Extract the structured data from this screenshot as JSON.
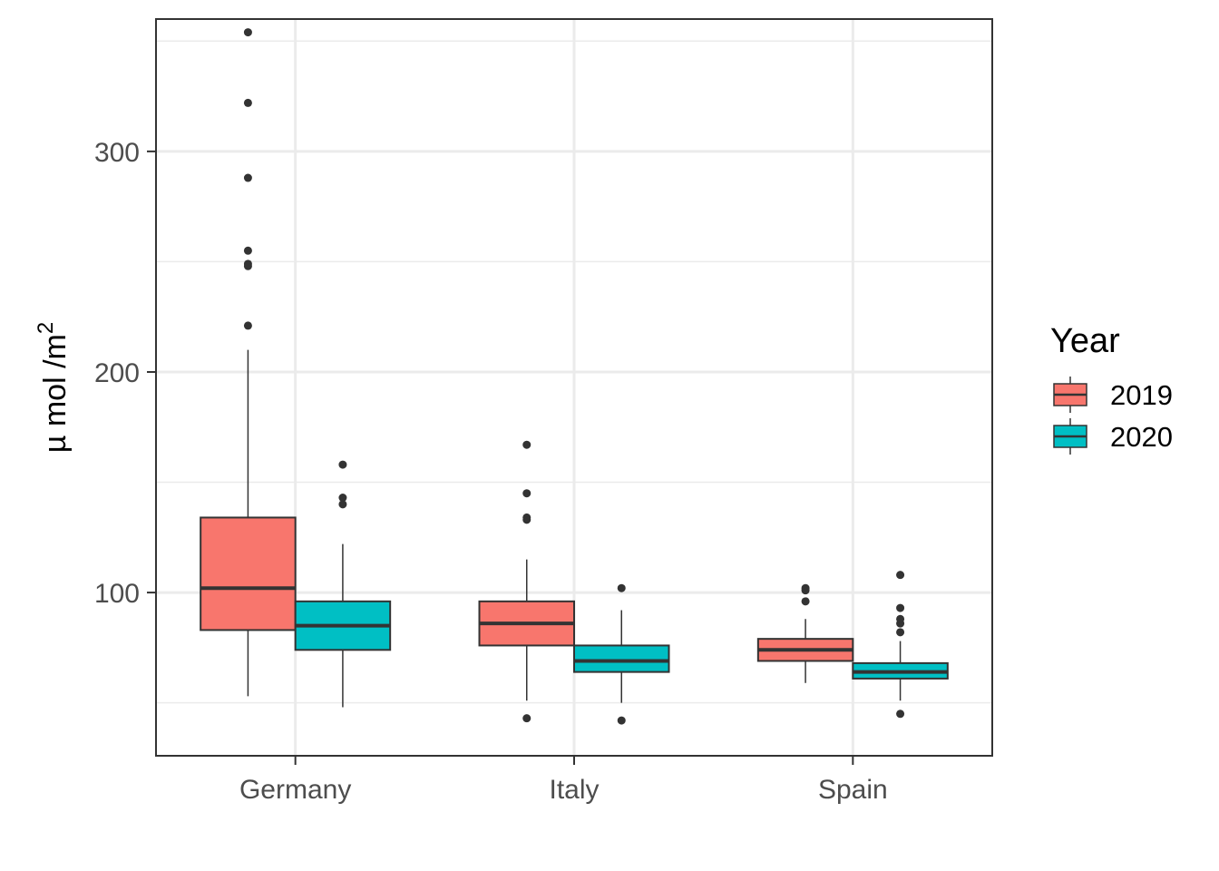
{
  "chart_data": {
    "type": "boxplot",
    "categories": [
      "Germany",
      "Italy",
      "Spain"
    ],
    "ylabel": "µ mol /m",
    "ylabel_superscript": "2",
    "xlabel": "",
    "ylim": [
      26,
      360
    ],
    "yticks": [
      100,
      200,
      300
    ],
    "y_minor_ticks": [
      50,
      150,
      250,
      350
    ],
    "grid": true,
    "legend": {
      "title": "Year",
      "position": "right",
      "entries": [
        "2019",
        "2020"
      ]
    },
    "series": [
      {
        "name": "2019",
        "color": "#F8766D",
        "boxes": [
          {
            "whisker_low": 53,
            "q1": 83,
            "median": 102,
            "q3": 134,
            "whisker_high": 210,
            "outliers": [
              221,
              248,
              249,
              255,
              288,
              322,
              354
            ]
          },
          {
            "whisker_low": 51,
            "q1": 76,
            "median": 86,
            "q3": 96,
            "whisker_high": 115,
            "outliers": [
              43,
              133,
              134,
              145,
              167
            ]
          },
          {
            "whisker_low": 59,
            "q1": 69,
            "median": 74,
            "q3": 79,
            "whisker_high": 88,
            "outliers": [
              96,
              101,
              102
            ]
          }
        ]
      },
      {
        "name": "2020",
        "color": "#00BFC4",
        "boxes": [
          {
            "whisker_low": 48,
            "q1": 74,
            "median": 85,
            "q3": 96,
            "whisker_high": 122,
            "outliers": [
              140,
              143,
              158
            ]
          },
          {
            "whisker_low": 50,
            "q1": 64,
            "median": 69,
            "q3": 76,
            "whisker_high": 92,
            "outliers": [
              42,
              102
            ]
          },
          {
            "whisker_low": 51,
            "q1": 61,
            "median": 64,
            "q3": 68,
            "whisker_high": 78,
            "outliers": [
              45,
              82,
              86,
              88,
              93,
              108
            ]
          }
        ]
      }
    ]
  }
}
